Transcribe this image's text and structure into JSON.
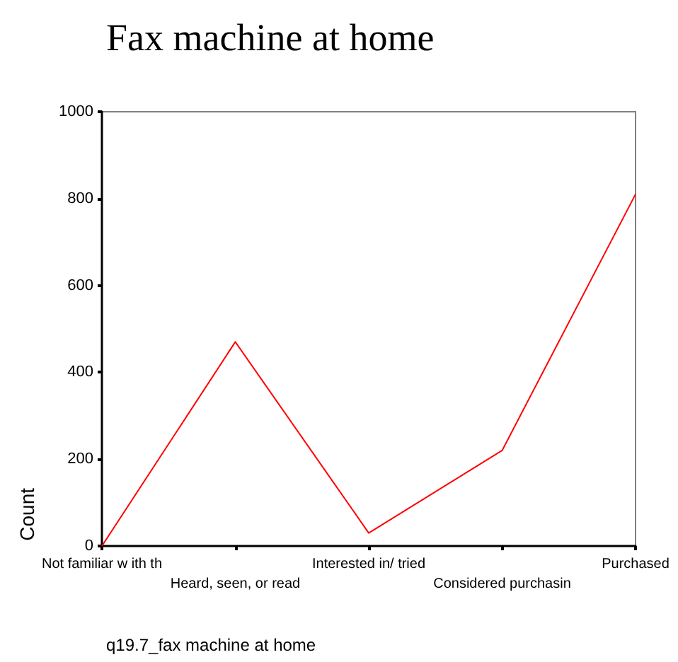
{
  "chart_data": {
    "type": "line",
    "title": "Fax machine at home",
    "xlabel": "q19.7_fax machine at home",
    "ylabel": "Count",
    "categories": [
      "Not familiar w ith th",
      "Heard, seen, or read",
      "Interested in/ tried",
      "Considered purchasin",
      "Purchased"
    ],
    "series": [
      {
        "color": "#ff0000",
        "values": [
          0,
          470,
          30,
          220,
          810
        ]
      }
    ],
    "ylim": [
      0,
      1000
    ],
    "yticks": [
      0,
      200,
      400,
      600,
      800,
      1000
    ],
    "marker": "none",
    "line_style": "solid"
  }
}
